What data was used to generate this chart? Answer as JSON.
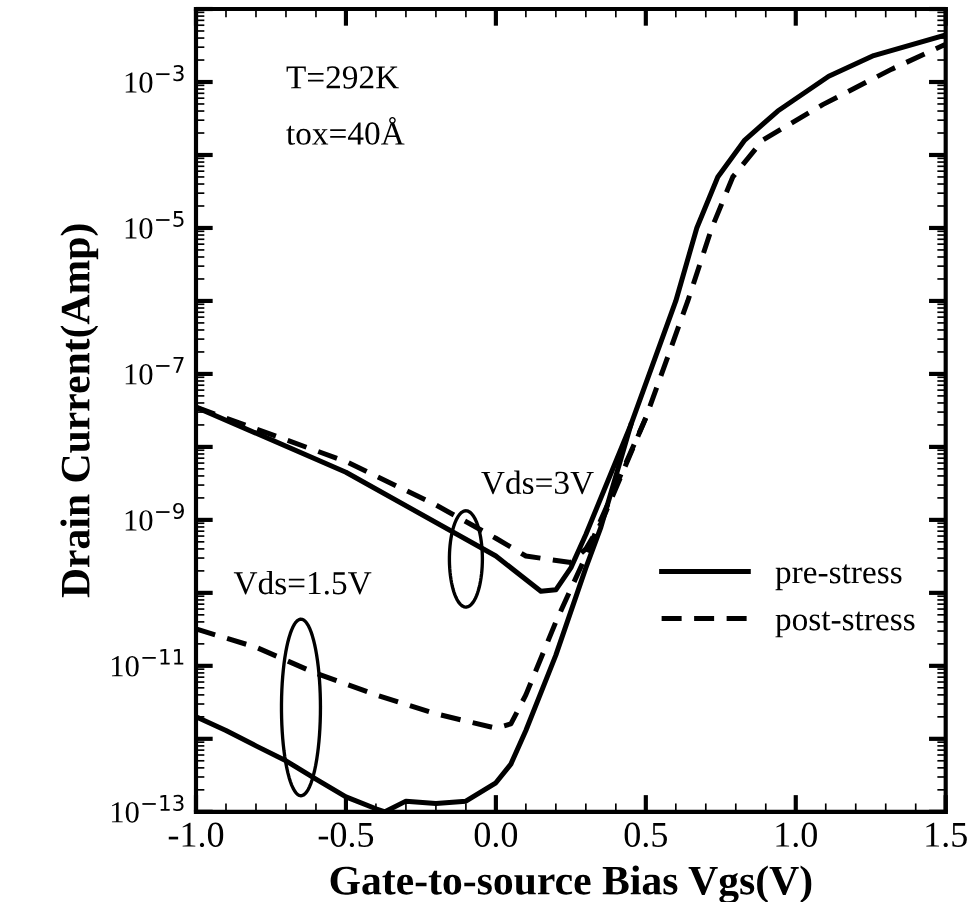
{
  "chart_data": {
    "type": "line",
    "xlabel": "Gate-to-source Bias Vgs(V)",
    "ylabel": "Drain Current(Amp)",
    "log": "y",
    "xlim": [
      -1.0,
      1.5
    ],
    "ylim": [
      1e-13,
      0.01
    ],
    "xticks": [
      {
        "value": -1.0,
        "label": "-1.0"
      },
      {
        "value": -0.5,
        "label": "-0.5"
      },
      {
        "value": 0.0,
        "label": "0.0"
      },
      {
        "value": 0.5,
        "label": "0.5"
      },
      {
        "value": 1.0,
        "label": "1.0"
      },
      {
        "value": 1.5,
        "label": "1.5"
      }
    ],
    "yticks": [
      {
        "value": 1e-13,
        "label": "10$^{−13}$"
      },
      {
        "value": 1e-12,
        "label": null
      },
      {
        "value": 1e-11,
        "label": "10$^{−11}$"
      },
      {
        "value": 1e-10,
        "label": null
      },
      {
        "value": 1e-09,
        "label": "10$^{−9}$"
      },
      {
        "value": 1e-08,
        "label": null
      },
      {
        "value": 1e-07,
        "label": "10$^{−7}$"
      },
      {
        "value": 1e-06,
        "label": null
      },
      {
        "value": 1e-05,
        "label": "10$^{−5}$"
      },
      {
        "value": 0.0001,
        "label": null
      },
      {
        "value": 0.001,
        "label": "10$^{−3}$"
      },
      {
        "value": 0.01,
        "label": null
      }
    ],
    "grid": false,
    "legend": "bottom right",
    "marker": "none",
    "annotations": [
      "T=292K",
      "tox=40Å",
      "Vds=3V",
      "Vds=1.5V"
    ],
    "series": [
      {
        "name": "pre-stress",
        "color": "#000000",
        "line_style": "solid",
        "x": [
          -1.0,
          -0.5,
          0.0,
          0.15,
          0.2,
          0.25,
          0.3,
          0.45,
          0.6,
          0.67,
          0.74,
          0.83,
          0.94,
          1.11,
          1.26,
          1.5
        ],
        "values": [
          3.5e-08,
          4.5e-09,
          3.2e-10,
          1.05e-10,
          1.1e-10,
          2.2e-10,
          6.3e-10,
          2e-08,
          1e-06,
          1e-05,
          5e-05,
          0.00016,
          0.0004,
          0.0012,
          0.0023,
          0.0044
        ]
      },
      {
        "name": "post-stress",
        "color": "#000000",
        "line_style": "dashed",
        "x": [
          -1.0,
          -0.5,
          -0.2,
          0.0,
          0.1,
          0.25,
          0.3,
          0.35,
          0.5,
          0.64,
          0.72,
          0.79,
          0.89,
          1.09,
          1.32,
          1.5
        ],
        "values": [
          3.5e-08,
          6.3e-09,
          1.6e-09,
          5.6e-10,
          3.2e-10,
          2.6e-10,
          4e-10,
          8.9e-10,
          2.5e-08,
          1e-06,
          1e-05,
          5e-05,
          0.00016,
          0.00049,
          0.0015,
          0.0033
        ]
      },
      {
        "color": "#000000",
        "line_style": "solid",
        "x": [
          -1.0,
          -0.9,
          -0.8,
          -0.7,
          -0.6,
          -0.5,
          -0.4,
          -0.37,
          -0.3,
          -0.2,
          -0.1,
          0.0,
          0.05,
          0.1,
          0.2,
          0.3,
          0.35,
          0.45
        ],
        "values": [
          2e-12,
          1.3e-12,
          8e-13,
          5e-13,
          2.8e-13,
          1.6e-13,
          1.1e-13,
          1e-13,
          1.4e-13,
          1.3e-13,
          1.4e-13,
          2.5e-13,
          4.5e-13,
          1.3e-12,
          1.4e-11,
          2.2e-10,
          7.9e-10,
          2e-08
        ]
      },
      {
        "color": "#000000",
        "line_style": "dashed",
        "x": [
          -1.0,
          -0.8,
          -0.6,
          -0.4,
          -0.2,
          0.0,
          0.05,
          0.1,
          0.2,
          0.3,
          0.35,
          0.5
        ],
        "values": [
          3.2e-11,
          1.8e-11,
          7.9e-12,
          4e-12,
          2.2e-12,
          1.4e-12,
          1.6e-12,
          4e-12,
          4e-11,
          3.2e-10,
          1e-09,
          2.5e-08
        ]
      }
    ]
  }
}
